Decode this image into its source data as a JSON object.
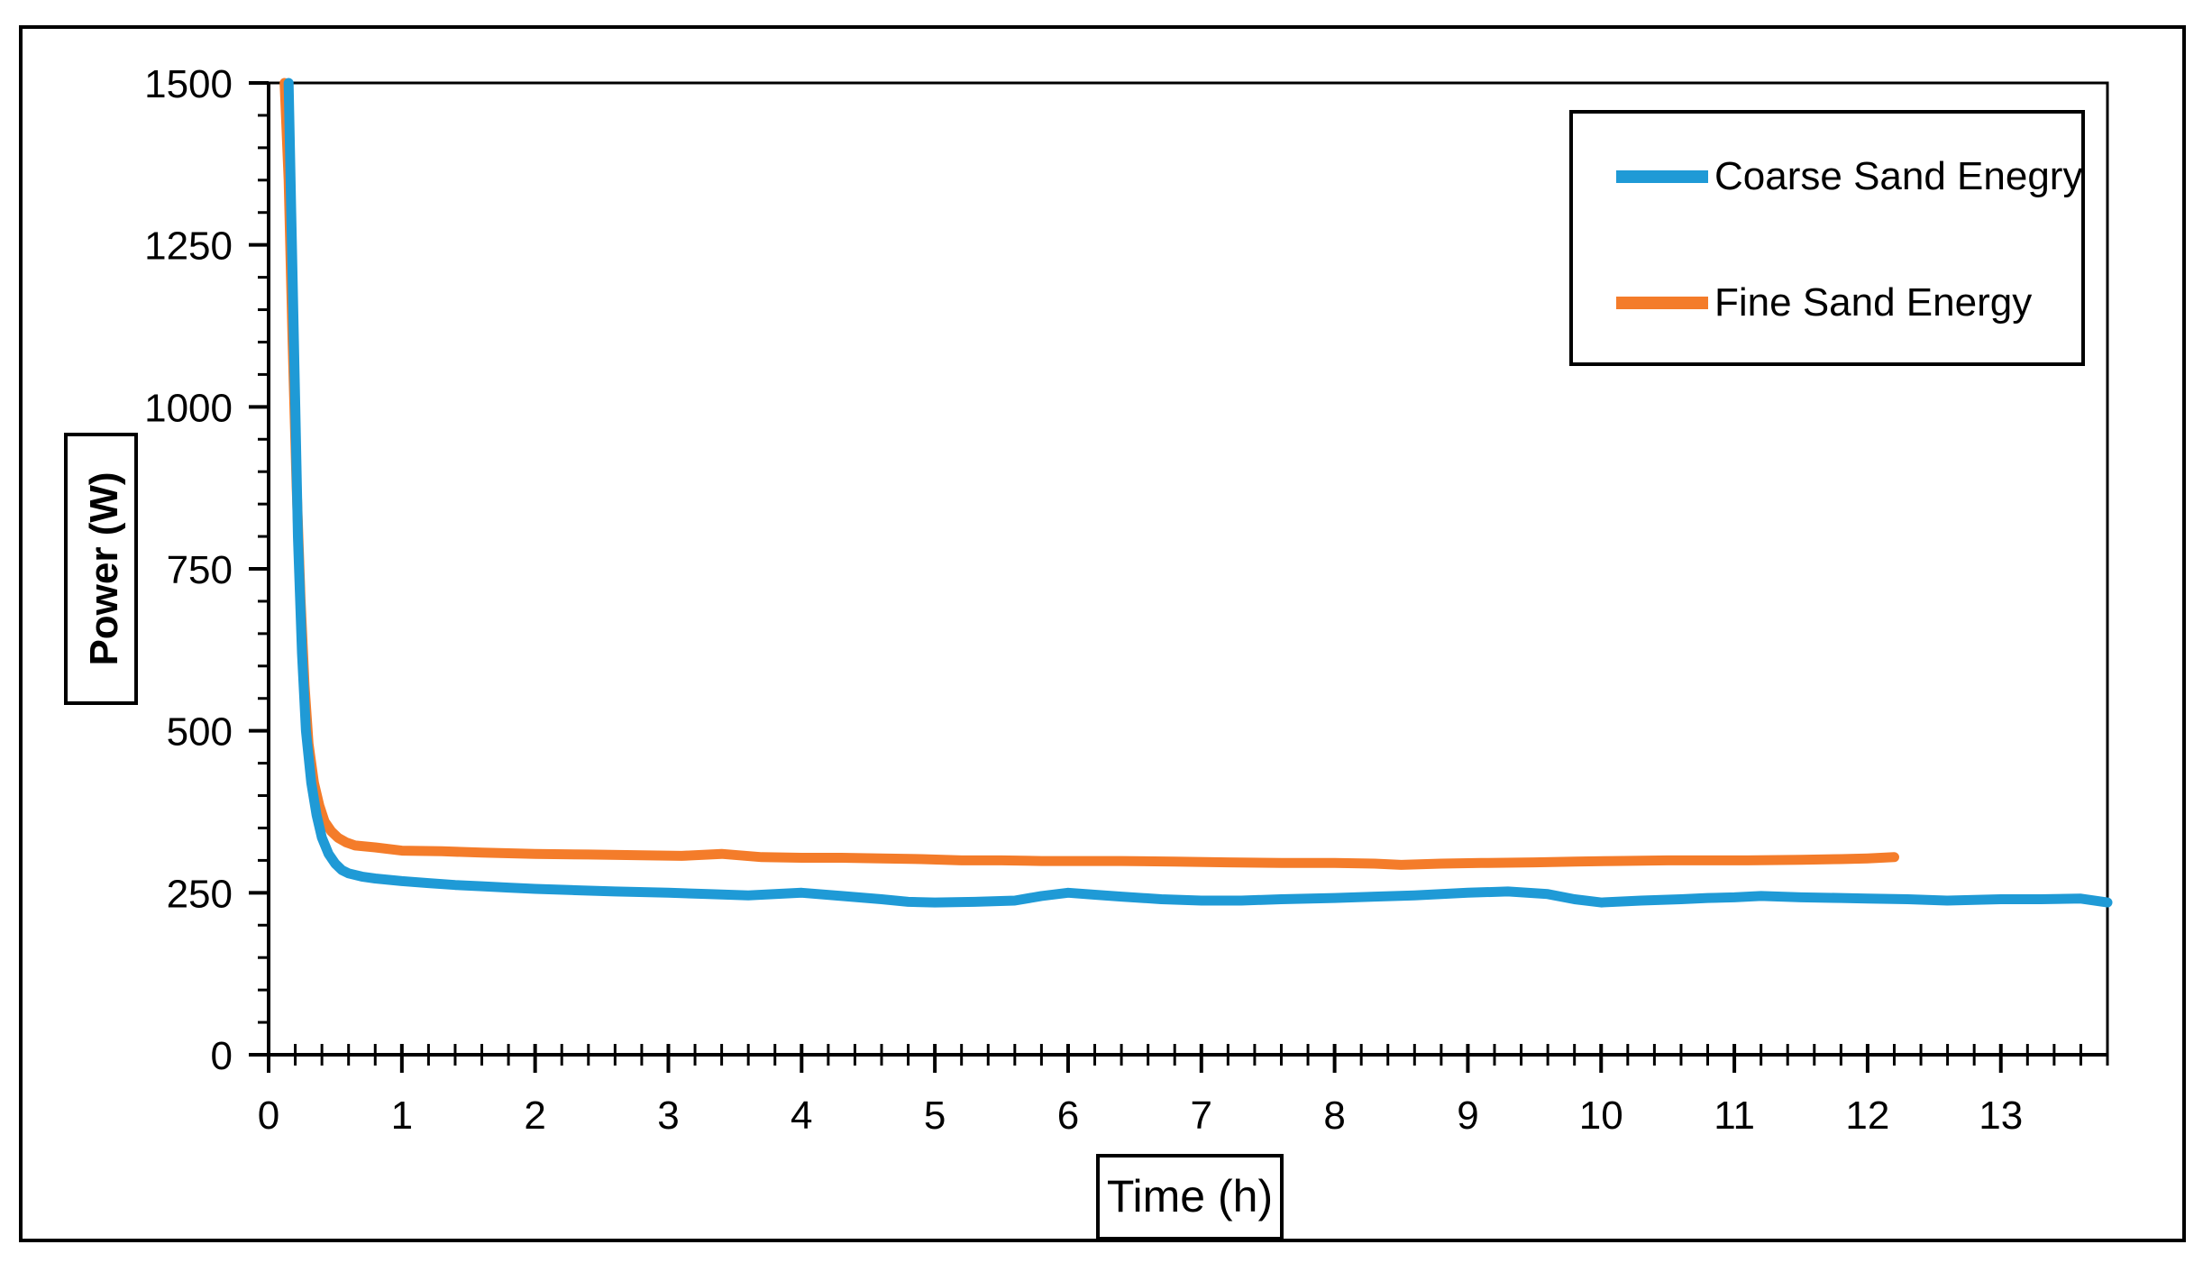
{
  "chart_data": {
    "type": "line",
    "title": "",
    "xlabel": "Time (h)",
    "ylabel": "Power (W)",
    "xlim": [
      0,
      13.8
    ],
    "ylim": [
      0,
      1500
    ],
    "x_ticks": [
      0,
      1,
      2,
      3,
      4,
      5,
      6,
      7,
      8,
      9,
      10,
      11,
      12,
      13
    ],
    "y_ticks": [
      0,
      250,
      500,
      750,
      1000,
      1250,
      1500
    ],
    "grid": false,
    "legend_position": "top-right",
    "series": [
      {
        "name": "Coarse Sand Enegry",
        "color": "#1f9ad6",
        "x": [
          0.15,
          0.17,
          0.2,
          0.22,
          0.25,
          0.28,
          0.32,
          0.36,
          0.4,
          0.45,
          0.5,
          0.55,
          0.6,
          0.7,
          0.8,
          1.0,
          1.2,
          1.4,
          1.6,
          1.8,
          2.0,
          2.3,
          2.6,
          3.0,
          3.3,
          3.6,
          4.0,
          4.3,
          4.6,
          4.8,
          5.0,
          5.3,
          5.6,
          5.8,
          6.0,
          6.2,
          6.4,
          6.7,
          7.0,
          7.3,
          7.6,
          8.0,
          8.3,
          8.6,
          8.8,
          9.0,
          9.3,
          9.6,
          9.8,
          10.0,
          10.3,
          10.6,
          10.8,
          11.0,
          11.2,
          11.5,
          11.8,
          12.0,
          12.3,
          12.6,
          13.0,
          13.3,
          13.6,
          13.8
        ],
        "y": [
          1500,
          1300,
          1000,
          800,
          620,
          500,
          420,
          370,
          335,
          310,
          295,
          285,
          280,
          275,
          272,
          268,
          265,
          262,
          260,
          258,
          256,
          254,
          252,
          250,
          248,
          246,
          250,
          245,
          240,
          236,
          235,
          236,
          238,
          245,
          250,
          247,
          244,
          240,
          238,
          238,
          240,
          242,
          244,
          246,
          248,
          250,
          252,
          248,
          240,
          235,
          238,
          240,
          242,
          243,
          245,
          243,
          242,
          241,
          240,
          238,
          240,
          240,
          241,
          235
        ]
      },
      {
        "name": "Fine Sand Energy",
        "color": "#f47c2a",
        "x": [
          0.12,
          0.15,
          0.18,
          0.21,
          0.24,
          0.27,
          0.3,
          0.34,
          0.38,
          0.42,
          0.47,
          0.52,
          0.58,
          0.65,
          0.8,
          1.0,
          1.3,
          1.6,
          2.0,
          2.4,
          2.8,
          3.1,
          3.4,
          3.7,
          4.0,
          4.3,
          4.6,
          4.9,
          5.2,
          5.5,
          5.8,
          6.1,
          6.4,
          6.8,
          7.2,
          7.6,
          8.0,
          8.3,
          8.5,
          8.8,
          9.1,
          9.5,
          9.8,
          10.1,
          10.5,
          10.8,
          11.1,
          11.5,
          11.8,
          12.0,
          12.2
        ],
        "y": [
          1500,
          1350,
          1100,
          880,
          700,
          570,
          480,
          420,
          385,
          360,
          345,
          335,
          328,
          323,
          320,
          315,
          314,
          312,
          310,
          309,
          308,
          307,
          310,
          305,
          304,
          304,
          303,
          302,
          300,
          300,
          299,
          299,
          299,
          298,
          297,
          296,
          296,
          295,
          293,
          295,
          296,
          297,
          298,
          299,
          300,
          300,
          300,
          301,
          302,
          303,
          305
        ]
      }
    ]
  }
}
